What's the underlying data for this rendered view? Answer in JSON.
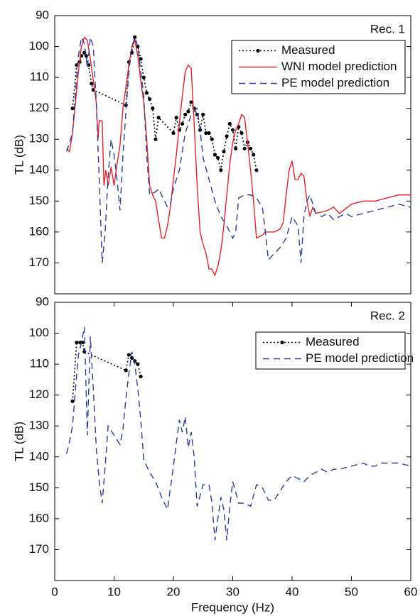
{
  "chart_data": [
    {
      "type": "line",
      "title": "Rec. 1",
      "y_label": "TL (dB)",
      "xlim": [
        0,
        60
      ],
      "ylim": [
        180,
        90
      ],
      "yticks": [
        90,
        100,
        110,
        120,
        130,
        140,
        150,
        160,
        170
      ],
      "legend": "upper right",
      "series": [
        {
          "name": "Measured",
          "color": "#000000",
          "line_style": "dotted",
          "marker": true,
          "x": [
            3,
            3.7,
            4.2,
            4.5,
            5,
            5.3,
            5.7,
            6.2,
            6.5,
            12,
            12.5,
            13,
            13.5,
            14,
            14.5,
            15,
            15.5,
            16,
            16.5,
            17,
            17.5,
            20,
            20.5,
            21,
            21.5,
            22,
            22.5,
            23,
            23.5,
            24,
            24.5,
            25,
            25.5,
            26,
            26.5,
            27,
            27.5,
            28,
            28.5,
            29,
            29.5,
            30,
            30.5,
            31,
            31.5,
            32,
            32.5,
            33,
            33.5,
            34
          ],
          "values": [
            120,
            106,
            105,
            103,
            102,
            103,
            106,
            112,
            114,
            119,
            105,
            102,
            97,
            100,
            104,
            110,
            115,
            117,
            120,
            130,
            123,
            128,
            123,
            127,
            125,
            122,
            121,
            118,
            120,
            122,
            127,
            122,
            128,
            128,
            130,
            135,
            136,
            140,
            134,
            129,
            125,
            127,
            133,
            126,
            128,
            133,
            131,
            133,
            135,
            140
          ]
        },
        {
          "name": "WNI model prediction",
          "color": "#e3242b",
          "line_style": "solid",
          "marker": false,
          "x": [
            2,
            2.5,
            3,
            3.5,
            4,
            4.5,
            5,
            5.5,
            6,
            6.5,
            7,
            7.3,
            7.5,
            8,
            8.3,
            8.6,
            9,
            9.5,
            10,
            10.5,
            11,
            11.5,
            12,
            12.5,
            13,
            13.5,
            14,
            14.5,
            15,
            15.5,
            16,
            16.5,
            17,
            17.5,
            18,
            18.5,
            19,
            19.5,
            20,
            20.5,
            21,
            21.5,
            22,
            22.5,
            23,
            23.5,
            24,
            24.5,
            25,
            25.5,
            26,
            26.5,
            27,
            27.5,
            28,
            28.5,
            29,
            29.5,
            30,
            30.5,
            31,
            31.5,
            32,
            32.5,
            33,
            33.5,
            34,
            35,
            35.5,
            37,
            38,
            38.5,
            39,
            39.5,
            40,
            40.5,
            41,
            41.5,
            42,
            42.5,
            43,
            43.5,
            44,
            46,
            47,
            48,
            50,
            52,
            54,
            56,
            58,
            60
          ],
          "values": [
            133,
            134,
            128,
            118,
            108,
            100,
            97,
            98,
            104,
            111,
            118,
            130,
            124,
            124,
            145,
            140,
            145,
            139,
            145,
            138,
            132,
            120,
            113,
            106,
            100,
            98,
            103,
            111,
            118,
            130,
            145,
            148,
            150,
            156,
            162,
            162,
            158,
            152,
            143,
            135,
            125,
            116,
            108,
            106,
            107,
            125,
            145,
            160,
            164,
            167,
            172,
            172,
            174,
            171,
            166,
            158,
            148,
            138,
            131,
            127,
            125,
            122,
            123,
            131,
            140,
            150,
            162,
            161,
            160,
            160,
            159,
            157,
            148,
            140,
            137,
            143,
            143,
            141,
            142,
            150,
            155,
            152,
            154,
            153,
            152,
            154,
            151,
            150,
            150,
            149,
            148,
            148
          ]
        },
        {
          "name": "PE model prediction",
          "color": "#2d3e9a",
          "line_style": "dashed",
          "marker": false,
          "x": [
            2,
            3,
            3.5,
            4,
            4.5,
            5,
            5.5,
            6,
            6.5,
            7,
            7.5,
            8,
            8.5,
            9,
            9.5,
            10,
            10.5,
            11,
            11.5,
            12,
            12.5,
            13,
            13.5,
            14,
            14.5,
            15,
            15.5,
            16,
            17,
            17.5,
            18,
            18.5,
            19,
            19.5,
            20,
            21,
            22,
            23,
            24,
            24.5,
            25,
            26,
            27,
            28,
            29,
            30,
            30.5,
            31,
            32,
            33,
            34,
            35,
            35.5,
            36,
            37,
            38,
            39,
            40,
            41,
            41.5,
            42,
            42.5,
            43,
            44,
            45,
            46,
            47,
            48,
            49,
            50,
            52,
            54,
            56,
            58,
            60
          ],
          "values": [
            134,
            128,
            115,
            103,
            97,
            99,
            107,
            97,
            100,
            118,
            143,
            170,
            160,
            142,
            130,
            135,
            143,
            153,
            135,
            121,
            108,
            100,
            97,
            100,
            108,
            116,
            135,
            148,
            147,
            146,
            148,
            150,
            152,
            151,
            146,
            140,
            128,
            122,
            120,
            127,
            136,
            143,
            150,
            155,
            158,
            162,
            160,
            149,
            148,
            148,
            149,
            152,
            160,
            169,
            167,
            165,
            162,
            155,
            158,
            170,
            155,
            150,
            148,
            154,
            155,
            154,
            156,
            155,
            154,
            155,
            154,
            153,
            152,
            151,
            152
          ]
        }
      ]
    },
    {
      "type": "line",
      "title": "Rec. 2",
      "y_label": "TL (dB)",
      "x_label": "Frequency (Hz)",
      "xlim": [
        0,
        60
      ],
      "ylim": [
        180,
        90
      ],
      "xticks": [
        0,
        10,
        20,
        30,
        40,
        50,
        60
      ],
      "yticks": [
        90,
        100,
        110,
        120,
        130,
        140,
        150,
        160,
        170
      ],
      "legend": "upper right",
      "series": [
        {
          "name": "Measured",
          "color": "#000000",
          "line_style": "dotted",
          "marker": true,
          "x": [
            3,
            3.7,
            4.3,
            4.7,
            5,
            12,
            12.5,
            13,
            13.5,
            14,
            14.5
          ],
          "values": [
            122,
            103,
            103,
            103,
            106,
            112,
            107,
            108,
            109,
            110,
            114
          ]
        },
        {
          "name": "PE model prediction",
          "color": "#2d3e9a",
          "line_style": "dashed",
          "marker": false,
          "x": [
            2,
            2.5,
            3,
            3.5,
            4,
            4.5,
            5,
            5.5,
            6,
            6.5,
            7,
            7.5,
            8,
            8.5,
            9,
            10,
            11,
            11.5,
            12,
            12.5,
            13,
            13.5,
            14,
            14.5,
            15,
            16,
            17,
            18,
            19,
            20,
            21,
            21.5,
            22,
            22.5,
            23,
            23.5,
            24,
            25,
            26,
            26.5,
            27,
            27.5,
            28,
            28.5,
            29,
            29.5,
            30,
            31,
            32,
            33,
            34,
            35,
            36,
            37,
            38,
            39,
            40,
            41,
            42,
            43,
            44,
            45,
            46,
            47,
            48,
            50,
            52,
            53,
            54,
            55,
            56,
            58,
            60
          ],
          "values": [
            139,
            135,
            130,
            118,
            107,
            103,
            98,
            133,
            101,
            118,
            137,
            148,
            155,
            143,
            130,
            133,
            136,
            131,
            121,
            113,
            106,
            110,
            118,
            128,
            141,
            145,
            148,
            153,
            157,
            143,
            128,
            132,
            127,
            137,
            132,
            140,
            156,
            149,
            149,
            155,
            167,
            160,
            153,
            157,
            167,
            156,
            148,
            155,
            155,
            156,
            149,
            150,
            154,
            154,
            151,
            148,
            146,
            147,
            148,
            146,
            145,
            144,
            145,
            144,
            144,
            143,
            142,
            143,
            143,
            142,
            142,
            142,
            143
          ]
        }
      ]
    }
  ]
}
